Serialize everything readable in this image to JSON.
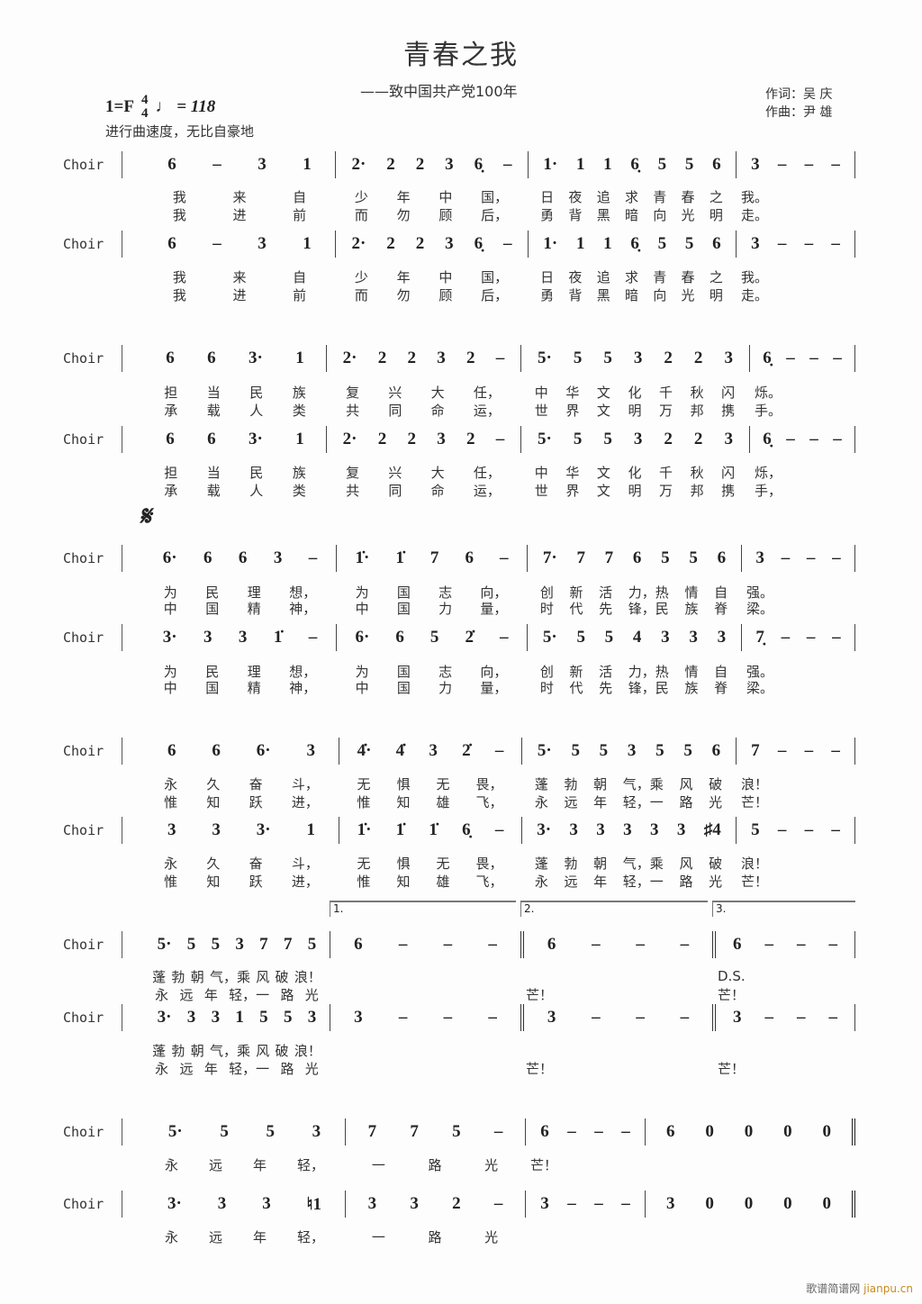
{
  "header": {
    "title": "青春之我",
    "subtitle": "——致中国共产党100年",
    "lyricist": "作词：吴  庆",
    "composer": "作曲：尹  雄",
    "key": "1=F",
    "time_top": "4",
    "time_bottom": "4",
    "tempo": "♩ = 118",
    "expression": "进行曲速度，无比自豪地"
  },
  "segno": "𝄋",
  "watermark": {
    "cn": "歌谱简谱网",
    "en": "jianpu.cn"
  },
  "systems": [
    {
      "staves": [
        {
          "label": "Choir",
          "measures": [
            [
              "6",
              "–",
              "3",
              "1"
            ],
            [
              "2·",
              "2",
              "2",
              "3",
              "6̣",
              "–"
            ],
            [
              "1·",
              "1",
              "1",
              "6̣",
              "5",
              "5",
              "6"
            ],
            [
              "3",
              "–",
              "–",
              "–"
            ]
          ],
          "lyrics": [
            [
              [
                "我",
                "来",
                "自"
              ],
              [
                "少",
                "年",
                "中",
                "国，"
              ],
              [
                "日",
                "夜",
                "追",
                "求",
                "青",
                "春",
                "之"
              ],
              [
                "我。"
              ]
            ],
            [
              [
                "我",
                "进",
                "前"
              ],
              [
                "而",
                "勿",
                "顾",
                "后，"
              ],
              [
                "勇",
                "背",
                "黑",
                "暗",
                "向",
                "光",
                "明"
              ],
              [
                "走。"
              ]
            ]
          ]
        },
        {
          "label": "Choir",
          "measures": [
            [
              "6",
              "–",
              "3",
              "1"
            ],
            [
              "2·",
              "2",
              "2",
              "3",
              "6̣",
              "–"
            ],
            [
              "1·",
              "1",
              "1",
              "6̣",
              "5",
              "5",
              "6"
            ],
            [
              "3",
              "–",
              "–",
              "–"
            ]
          ],
          "lyrics": [
            [
              [
                "我",
                "来",
                "自"
              ],
              [
                "少",
                "年",
                "中",
                "国，"
              ],
              [
                "日",
                "夜",
                "追",
                "求",
                "青",
                "春",
                "之"
              ],
              [
                "我。"
              ]
            ],
            [
              [
                "我",
                "进",
                "前"
              ],
              [
                "而",
                "勿",
                "顾",
                "后，"
              ],
              [
                "勇",
                "背",
                "黑",
                "暗",
                "向",
                "光",
                "明"
              ],
              [
                "走。"
              ]
            ]
          ]
        }
      ]
    },
    {
      "staves": [
        {
          "label": "Choir",
          "measures": [
            [
              "6",
              "6",
              "3·",
              "1"
            ],
            [
              "2·",
              "2",
              "2",
              "3",
              "2",
              "–"
            ],
            [
              "5·",
              "5",
              "5",
              "3",
              "2",
              "2",
              "3"
            ],
            [
              "6̣",
              "–",
              "–",
              "–"
            ]
          ],
          "lyrics": [
            [
              [
                "担",
                "当",
                "民",
                "族"
              ],
              [
                "复",
                "兴",
                "大",
                "任，"
              ],
              [
                "中",
                "华",
                "文",
                "化",
                "千",
                "秋",
                "闪"
              ],
              [
                "烁。"
              ]
            ],
            [
              [
                "承",
                "载",
                "人",
                "类"
              ],
              [
                "共",
                "同",
                "命",
                "运，"
              ],
              [
                "世",
                "界",
                "文",
                "明",
                "万",
                "邦",
                "携"
              ],
              [
                "手。"
              ]
            ]
          ]
        },
        {
          "label": "Choir",
          "measures": [
            [
              "6",
              "6",
              "3·",
              "1"
            ],
            [
              "2·",
              "2",
              "2",
              "3",
              "2",
              "–"
            ],
            [
              "5·",
              "5",
              "5",
              "3",
              "2",
              "2",
              "3"
            ],
            [
              "6̣",
              "–",
              "–",
              "–"
            ]
          ],
          "lyrics": [
            [
              [
                "担",
                "当",
                "民",
                "族"
              ],
              [
                "复",
                "兴",
                "大",
                "任，"
              ],
              [
                "中",
                "华",
                "文",
                "化",
                "千",
                "秋",
                "闪"
              ],
              [
                "烁，"
              ]
            ],
            [
              [
                "承",
                "载",
                "人",
                "类"
              ],
              [
                "共",
                "同",
                "命",
                "运，"
              ],
              [
                "世",
                "界",
                "文",
                "明",
                "万",
                "邦",
                "携"
              ],
              [
                "手，"
              ]
            ]
          ]
        }
      ]
    },
    {
      "staves": [
        {
          "label": "Choir",
          "measures": [
            [
              "6·",
              "6",
              "6",
              "3",
              "–"
            ],
            [
              "1̇·",
              "1̇",
              "7",
              "6",
              "–"
            ],
            [
              "7·",
              "7",
              "7",
              "6",
              "5",
              "5",
              "6"
            ],
            [
              "3",
              "–",
              "–",
              "–"
            ]
          ],
          "lyrics": [
            [
              [
                "为",
                "民",
                "理",
                "想，"
              ],
              [
                "为",
                "国",
                "志",
                "向，"
              ],
              [
                "创",
                "新",
                "活",
                "力，热",
                "情",
                "自"
              ],
              [
                "强。"
              ]
            ],
            [
              [
                "中",
                "国",
                "精",
                "神，"
              ],
              [
                "中",
                "国",
                "力",
                "量，"
              ],
              [
                "时",
                "代",
                "先",
                "锋，民",
                "族",
                "脊"
              ],
              [
                "梁。"
              ]
            ]
          ]
        },
        {
          "label": "Choir",
          "measures": [
            [
              "3·",
              "3",
              "3",
              "1̇",
              "–"
            ],
            [
              "6·",
              "6",
              "5",
              "2̇",
              "–"
            ],
            [
              "5·",
              "5",
              "5",
              "4",
              "3",
              "3",
              "3"
            ],
            [
              "7̣",
              "–",
              "–",
              "–"
            ]
          ],
          "lyrics": [
            [
              [
                "为",
                "民",
                "理",
                "想，"
              ],
              [
                "为",
                "国",
                "志",
                "向，"
              ],
              [
                "创",
                "新",
                "活",
                "力，热",
                "情",
                "自"
              ],
              [
                "强。"
              ]
            ],
            [
              [
                "中",
                "国",
                "精",
                "神，"
              ],
              [
                "中",
                "国",
                "力",
                "量，"
              ],
              [
                "时",
                "代",
                "先",
                "锋，民",
                "族",
                "脊"
              ],
              [
                "梁。"
              ]
            ]
          ]
        }
      ]
    },
    {
      "staves": [
        {
          "label": "Choir",
          "measures": [
            [
              "6",
              "6",
              "6·",
              "3"
            ],
            [
              "4̇·",
              "4̇",
              "3",
              "2̇",
              "–"
            ],
            [
              "5·",
              "5",
              "5",
              "3",
              "5",
              "5",
              "6"
            ],
            [
              "7",
              "–",
              "–",
              "–"
            ]
          ],
          "lyrics": [
            [
              [
                "永",
                "久",
                "奋",
                "斗，"
              ],
              [
                "无",
                "惧",
                "无",
                "畏，"
              ],
              [
                "蓬",
                "勃",
                "朝",
                "气，乘",
                "风",
                "破"
              ],
              [
                "浪！"
              ]
            ],
            [
              [
                "惟",
                "知",
                "跃",
                "进，"
              ],
              [
                "惟",
                "知",
                "雄",
                "飞，"
              ],
              [
                "永",
                "远",
                "年",
                "轻，一",
                "路",
                "光"
              ],
              [
                "芒！"
              ]
            ]
          ]
        },
        {
          "label": "Choir",
          "measures": [
            [
              "3",
              "3",
              "3·",
              "1"
            ],
            [
              "1̇·",
              "1̇",
              "1̇",
              "6̣",
              "–"
            ],
            [
              "3·",
              "3",
              "3",
              "3",
              "3",
              "3",
              "♯4"
            ],
            [
              "5",
              "–",
              "–",
              "–"
            ]
          ],
          "lyrics": [
            [
              [
                "永",
                "久",
                "奋",
                "斗，"
              ],
              [
                "无",
                "惧",
                "无",
                "畏，"
              ],
              [
                "蓬",
                "勃",
                "朝",
                "气，乘",
                "风",
                "破"
              ],
              [
                "浪！"
              ]
            ],
            [
              [
                "惟",
                "知",
                "跃",
                "进，"
              ],
              [
                "惟",
                "知",
                "雄",
                "飞，"
              ],
              [
                "永",
                "远",
                "年",
                "轻，一",
                "路",
                "光"
              ],
              [
                "芒！"
              ]
            ]
          ]
        }
      ]
    },
    {
      "voltas": [
        "1.",
        "2.",
        "3."
      ],
      "staves": [
        {
          "label": "Choir",
          "measures": [
            [
              "5·",
              "5",
              "5",
              "3",
              "7",
              "7",
              "5"
            ],
            [
              "6",
              "–",
              "–",
              "–"
            ],
            [
              "6",
              "–",
              "–",
              "–"
            ],
            [
              "6",
              "–",
              "–",
              "–"
            ]
          ],
          "lyrics": [
            [
              [
                "蓬",
                "勃",
                "朝",
                "气，乘",
                "风",
                "破",
                "浪！"
              ],
              [],
              [],
              [
                "D.S."
              ]
            ],
            [
              [
                "永",
                "远",
                "年",
                "轻，一",
                "路",
                "光"
              ],
              [],
              [
                "芒！"
              ],
              [
                "芒！"
              ]
            ]
          ]
        },
        {
          "label": "Choir",
          "measures": [
            [
              "3·",
              "3",
              "3",
              "1",
              "5",
              "5",
              "3"
            ],
            [
              "3",
              "–",
              "–",
              "–"
            ],
            [
              "3",
              "–",
              "–",
              "–"
            ],
            [
              "3",
              "–",
              "–",
              "–"
            ]
          ],
          "lyrics": [
            [
              [
                "蓬",
                "勃",
                "朝",
                "气，乘",
                "风",
                "破",
                "浪！"
              ],
              [],
              [],
              []
            ],
            [
              [
                "永",
                "远",
                "年",
                "轻，一",
                "路",
                "光"
              ],
              [],
              [
                "芒！"
              ],
              [
                "芒！"
              ]
            ]
          ]
        }
      ]
    },
    {
      "staves": [
        {
          "label": "Choir",
          "measures": [
            [
              "5·",
              "5",
              "5",
              "3"
            ],
            [
              "7",
              "7",
              "5",
              "–"
            ],
            [
              "6",
              "–",
              "–",
              "–"
            ],
            [
              "6",
              "0",
              "0",
              "0",
              "0"
            ]
          ],
          "lyrics": [
            [
              [
                "永",
                "远",
                "年",
                "轻，"
              ],
              [
                "一",
                "路",
                "光"
              ],
              [
                "芒！"
              ],
              []
            ]
          ]
        },
        {
          "label": "Choir",
          "measures": [
            [
              "3·",
              "3",
              "3",
              "♮1"
            ],
            [
              "3",
              "3",
              "2",
              "–"
            ],
            [
              "3",
              "–",
              "–",
              "–"
            ],
            [
              "3",
              "0",
              "0",
              "0",
              "0"
            ]
          ],
          "lyrics": [
            [
              [
                "永",
                "远",
                "年",
                "轻，"
              ],
              [
                "一",
                "路",
                "光"
              ],
              [],
              []
            ]
          ]
        }
      ]
    }
  ]
}
